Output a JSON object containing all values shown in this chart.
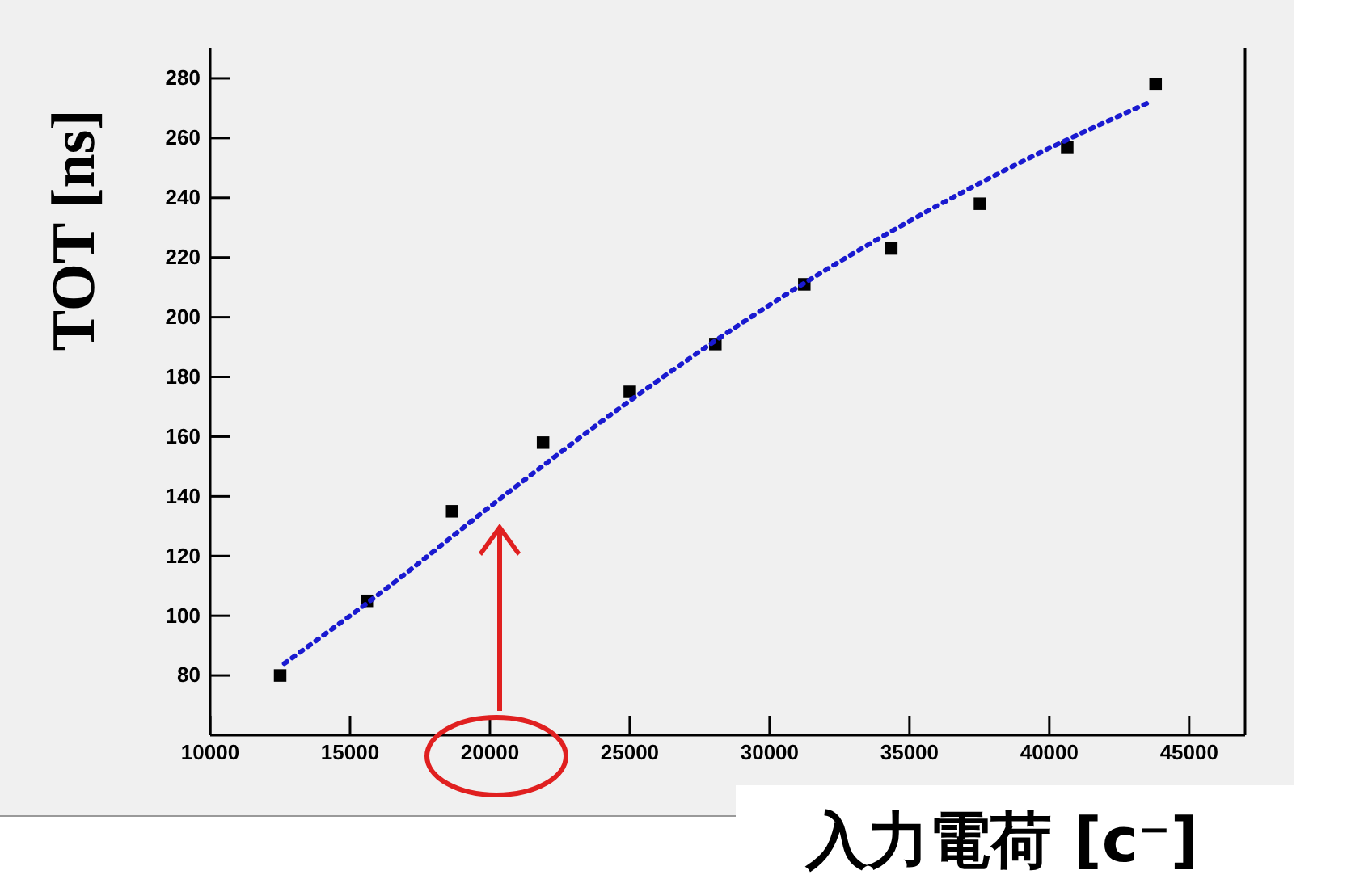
{
  "chart_data": {
    "type": "scatter",
    "xlabel": "入力電荷 [c⁻]",
    "ylabel": "TOT [ns]",
    "xlim": [
      10000,
      47000
    ],
    "xticks": [
      10000,
      15000,
      20000,
      25000,
      30000,
      35000,
      40000,
      45000
    ],
    "ylim": [
      60,
      290
    ],
    "yticks": [
      80,
      100,
      120,
      140,
      160,
      180,
      200,
      220,
      240,
      260,
      280
    ],
    "series": [
      {
        "type": "scatter",
        "color": "#000000",
        "marker": "square",
        "x": [
          12500,
          15600,
          18650,
          21900,
          25000,
          28060,
          31240,
          34350,
          37520,
          40640,
          43800
        ],
        "values": [
          80,
          105,
          135,
          158,
          175,
          191,
          211,
          223,
          238,
          257,
          278
        ]
      },
      {
        "type": "line",
        "color": "#1a1ad0",
        "line_style": "dotted",
        "x": [
          12650,
          16000,
          20200,
          25000,
          29000,
          34400,
          39000,
          43580
        ],
        "values": [
          84,
          107,
          138,
          172,
          198,
          229,
          252,
          272
        ]
      }
    ]
  }
}
